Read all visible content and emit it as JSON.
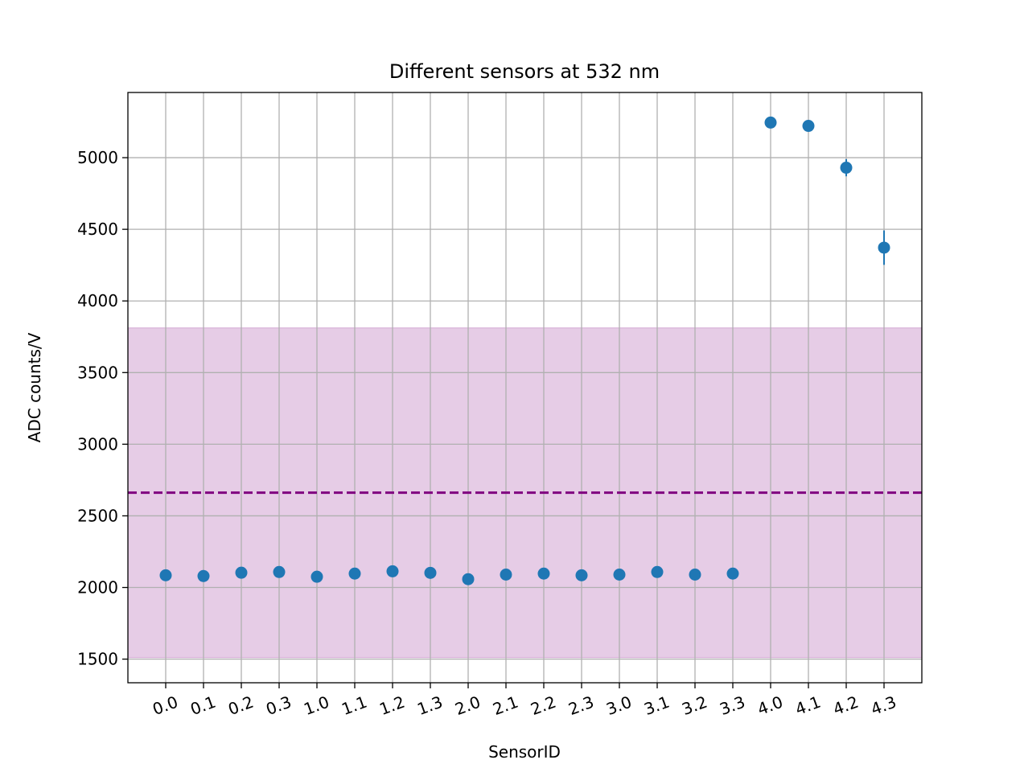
{
  "chart_data": {
    "type": "scatter",
    "title": "Different sensors at 532 nm",
    "xlabel": "SensorID",
    "ylabel": "ADC counts/V",
    "categories": [
      "0.0",
      "0.1",
      "0.2",
      "0.3",
      "1.0",
      "1.1",
      "1.2",
      "1.3",
      "2.0",
      "2.1",
      "2.2",
      "2.3",
      "3.0",
      "3.1",
      "3.2",
      "3.3",
      "4.0",
      "4.1",
      "4.2",
      "4.3"
    ],
    "series": [
      {
        "values": [
          2085,
          2080,
          2103,
          2108,
          2075,
          2097,
          2113,
          2102,
          2058,
          2090,
          2097,
          2085,
          2090,
          2108,
          2090,
          2097,
          5245,
          5222,
          4930,
          4372
        ],
        "errors": [
          10,
          10,
          10,
          10,
          10,
          10,
          10,
          10,
          10,
          10,
          10,
          10,
          10,
          10,
          10,
          10,
          12,
          14,
          60,
          120
        ],
        "color": "#1f77b4"
      }
    ],
    "reference_line": {
      "value": 2662,
      "style": "dashed",
      "color": "#800080"
    },
    "reference_band": {
      "low": 1510,
      "high": 3812,
      "color": "#800080",
      "opacity": 0.2
    },
    "yticks": [
      1500,
      2000,
      2500,
      3000,
      3500,
      4000,
      4500,
      5000
    ],
    "ylim": [
      1335,
      5455
    ],
    "grid": true,
    "xtick_rotation": 20
  }
}
